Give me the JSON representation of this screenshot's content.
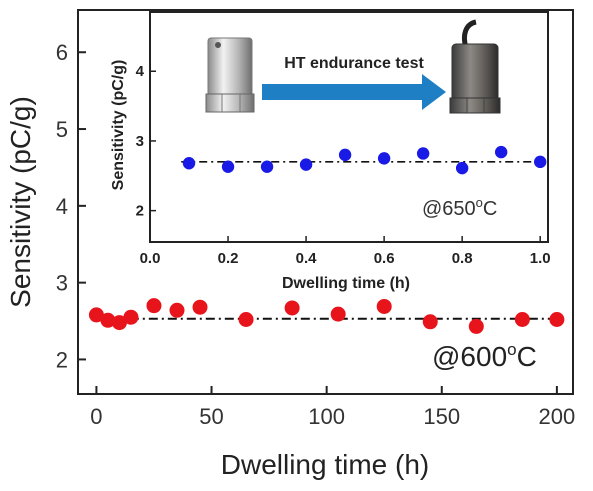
{
  "chart_data": [
    {
      "type": "scatter",
      "xlabel": "Dwelling time (h)",
      "ylabel": "Sensitivity (pC/g)",
      "xlim": [
        -8,
        207
      ],
      "ylim": [
        1.55,
        6.55
      ],
      "xticks": [
        0,
        50,
        100,
        150,
        200
      ],
      "yticks": [
        2,
        3,
        4,
        5,
        6
      ],
      "grid": false,
      "annotation": {
        "prefix": "@600",
        "sup": "o",
        "suffix": "C"
      },
      "reference_line": {
        "y": 2.53,
        "style": "dash-dot"
      },
      "series": [
        {
          "color": "#e8141c",
          "x": [
            0,
            5,
            10,
            15,
            25,
            35,
            45,
            65,
            85,
            105,
            125,
            145,
            165,
            185,
            200
          ],
          "y": [
            2.58,
            2.51,
            2.48,
            2.55,
            2.7,
            2.64,
            2.68,
            2.52,
            2.67,
            2.59,
            2.69,
            2.49,
            2.43,
            2.52,
            2.52
          ]
        }
      ]
    },
    {
      "type": "scatter",
      "inset": true,
      "xlabel": "Dwelling time (h)",
      "ylabel": "Sensitivity (pC/g)",
      "xlim": [
        0.0,
        1.02
      ],
      "ylim": [
        1.55,
        4.85
      ],
      "xticks": [
        0.0,
        0.2,
        0.4,
        0.6,
        0.8,
        1.0
      ],
      "xtick_labels": [
        "0.0",
        "0.2",
        "0.4",
        "0.6",
        "0.8",
        "1.0"
      ],
      "yticks": [
        2,
        3,
        4
      ],
      "grid": false,
      "annotation": {
        "prefix": "@650",
        "sup": "o",
        "suffix": "C"
      },
      "arrow_label": "HT endurance test",
      "arrow_color": "#1f7fc4",
      "reference_line": {
        "y": 2.7,
        "style": "dash-dot"
      },
      "series": [
        {
          "color": "#1a1ae6",
          "x": [
            0.1,
            0.2,
            0.3,
            0.4,
            0.5,
            0.6,
            0.7,
            0.8,
            0.9,
            1.0
          ],
          "y": [
            2.68,
            2.63,
            2.63,
            2.66,
            2.8,
            2.75,
            2.82,
            2.61,
            2.84,
            2.7
          ]
        }
      ]
    }
  ]
}
